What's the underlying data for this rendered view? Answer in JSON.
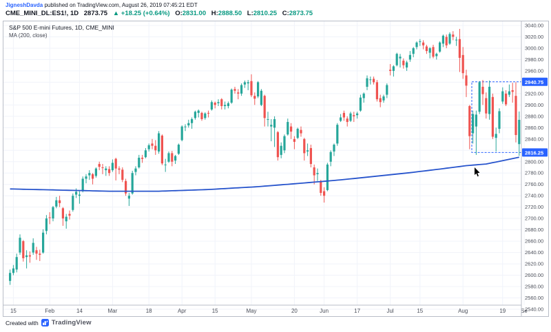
{
  "header": {
    "author": "JigneshDavda",
    "published": " published on TradingView.com, August 26, 2019 07:45:21 EDT",
    "symbol": "CME_MINI_DL:ES1!, 1D",
    "last_price": "2873.75",
    "change": "▲ +18.25 (+0.64%)",
    "ohlc": [
      {
        "label": "O:",
        "value": "2831.00"
      },
      {
        "label": "H:",
        "value": "2888.50"
      },
      {
        "label": "L:",
        "value": "2810.25"
      },
      {
        "label": "C:",
        "value": "2873.75"
      }
    ]
  },
  "legend": {
    "line1": "S&P 500 E-mini Futures, 1D, CME_MINI",
    "line2": "MA (200, close)"
  },
  "footer": {
    "created_with": "Created with",
    "brand": "TradingView"
  },
  "colors": {
    "up": "#26a69a",
    "down": "#ef5350",
    "ma": "#2653cc",
    "level": "#2962ff",
    "badge_bg": "#2962ff",
    "badge_text": "#ffffff",
    "grid": "#f0f3fa",
    "axis_text": "#4a4e59",
    "separator": "#b9bdc7"
  },
  "chart_data": {
    "type": "candlestick",
    "title": "S&P 500 E-mini Futures, 1D, CME_MINI",
    "overlay": "MA (200, close)",
    "y_axis": {
      "min": 2540,
      "max": 3040,
      "step": 20
    },
    "x_ticks": [
      {
        "i": 1,
        "label": "15"
      },
      {
        "i": 12,
        "label": "Feb"
      },
      {
        "i": 21,
        "label": "14"
      },
      {
        "i": 31,
        "label": "Mar"
      },
      {
        "i": 42,
        "label": "18"
      },
      {
        "i": 52,
        "label": "Apr"
      },
      {
        "i": 62,
        "label": "15"
      },
      {
        "i": 73,
        "label": "May"
      },
      {
        "i": 86,
        "label": "20"
      },
      {
        "i": 95,
        "label": "Jun"
      },
      {
        "i": 105,
        "label": "17"
      },
      {
        "i": 115,
        "label": "Jul"
      },
      {
        "i": 124,
        "label": "15"
      },
      {
        "i": 137,
        "label": "Aug"
      },
      {
        "i": 149,
        "label": "19"
      },
      {
        "i": 155.5,
        "label": "Se"
      }
    ],
    "levels": [
      {
        "price": 2940.75,
        "label": "2940.75"
      },
      {
        "price": 2816.25,
        "label": "2816.25"
      }
    ],
    "range_box": {
      "start_bar": 140,
      "top": 2940.75,
      "bottom": 2816.25
    },
    "ma200_anchors": [
      [
        0,
        2752
      ],
      [
        15,
        2750
      ],
      [
        30,
        2748
      ],
      [
        45,
        2748
      ],
      [
        60,
        2751
      ],
      [
        75,
        2756
      ],
      [
        90,
        2763
      ],
      [
        100,
        2768
      ],
      [
        110,
        2774
      ],
      [
        120,
        2780
      ],
      [
        130,
        2787
      ],
      [
        138,
        2793
      ],
      [
        144,
        2796
      ],
      [
        150,
        2803
      ],
      [
        154,
        2808
      ]
    ],
    "cursor": {
      "bar": 140.5,
      "price": 2790
    },
    "candles": [
      [
        2590,
        2610,
        2583,
        2604
      ],
      [
        2604,
        2618,
        2600,
        2612
      ],
      [
        2610,
        2638,
        2605,
        2632
      ],
      [
        2640,
        2672,
        2636,
        2666
      ],
      [
        2660,
        2662,
        2624,
        2630
      ],
      [
        2632,
        2644,
        2612,
        2635
      ],
      [
        2635,
        2642,
        2622,
        2633
      ],
      [
        2640,
        2665,
        2636,
        2657
      ],
      [
        2644,
        2650,
        2627,
        2638
      ],
      [
        2638,
        2645,
        2625,
        2636
      ],
      [
        2640,
        2681,
        2638,
        2675
      ],
      [
        2678,
        2706,
        2672,
        2700
      ],
      [
        2702,
        2711,
        2690,
        2701
      ],
      [
        2700,
        2722,
        2695,
        2720
      ],
      [
        2721,
        2738,
        2718,
        2732
      ],
      [
        2732,
        2740,
        2720,
        2727
      ],
      [
        2718,
        2720,
        2687,
        2700
      ],
      [
        2695,
        2708,
        2682,
        2703
      ],
      [
        2708,
        2714,
        2698,
        2705
      ],
      [
        2715,
        2744,
        2712,
        2740
      ],
      [
        2742,
        2753,
        2736,
        2747
      ],
      [
        2740,
        2748,
        2726,
        2742
      ],
      [
        2748,
        2774,
        2746,
        2770
      ],
      [
        2770,
        2778,
        2762,
        2774
      ],
      [
        2776,
        2785,
        2768,
        2780
      ],
      [
        2778,
        2780,
        2760,
        2770
      ],
      [
        2775,
        2790,
        2772,
        2788
      ],
      [
        2796,
        2800,
        2785,
        2791
      ],
      [
        2790,
        2796,
        2778,
        2789
      ],
      [
        2785,
        2792,
        2775,
        2788
      ],
      [
        2787,
        2792,
        2775,
        2780
      ],
      [
        2785,
        2804,
        2782,
        2798
      ],
      [
        2805,
        2807,
        2767,
        2788
      ],
      [
        2788,
        2792,
        2778,
        2786
      ],
      [
        2786,
        2790,
        2764,
        2768
      ],
      [
        2766,
        2770,
        2740,
        2744
      ],
      [
        2735,
        2745,
        2722,
        2740
      ],
      [
        2744,
        2784,
        2742,
        2780
      ],
      [
        2782,
        2792,
        2776,
        2788
      ],
      [
        2790,
        2812,
        2788,
        2807
      ],
      [
        2807,
        2812,
        2798,
        2805
      ],
      [
        2808,
        2824,
        2806,
        2820
      ],
      [
        2822,
        2832,
        2818,
        2829
      ],
      [
        2832,
        2840,
        2822,
        2828
      ],
      [
        2828,
        2838,
        2812,
        2820
      ],
      [
        2818,
        2854,
        2814,
        2850
      ],
      [
        2846,
        2848,
        2794,
        2797
      ],
      [
        2795,
        2805,
        2782,
        2795
      ],
      [
        2800,
        2818,
        2798,
        2815
      ],
      [
        2815,
        2819,
        2792,
        2800
      ],
      [
        2802,
        2812,
        2796,
        2810
      ],
      [
        2814,
        2832,
        2812,
        2830
      ],
      [
        2838,
        2864,
        2836,
        2862
      ],
      [
        2862,
        2866,
        2854,
        2862
      ],
      [
        2864,
        2874,
        2860,
        2868
      ],
      [
        2868,
        2878,
        2858,
        2875
      ],
      [
        2877,
        2890,
        2874,
        2888
      ],
      [
        2886,
        2892,
        2878,
        2890
      ],
      [
        2886,
        2888,
        2872,
        2875
      ],
      [
        2877,
        2887,
        2874,
        2885
      ],
      [
        2886,
        2890,
        2878,
        2885
      ],
      [
        2892,
        2908,
        2890,
        2905
      ],
      [
        2904,
        2906,
        2894,
        2900
      ],
      [
        2903,
        2910,
        2898,
        2905
      ],
      [
        2910,
        2912,
        2892,
        2898
      ],
      [
        2898,
        2906,
        2892,
        2900
      ],
      [
        2898,
        2906,
        2894,
        2903
      ],
      [
        2904,
        2929,
        2902,
        2927
      ],
      [
        2928,
        2932,
        2920,
        2925
      ],
      [
        2922,
        2928,
        2910,
        2920
      ],
      [
        2920,
        2938,
        2916,
        2935
      ],
      [
        2936,
        2943,
        2930,
        2940
      ],
      [
        2938,
        2944,
        2926,
        2940
      ],
      [
        2942,
        2954,
        2914,
        2917
      ],
      [
        2916,
        2922,
        2900,
        2911
      ],
      [
        2915,
        2942,
        2912,
        2940
      ],
      [
        2900,
        2928,
        2898,
        2925
      ],
      [
        2916,
        2918,
        2862,
        2877
      ],
      [
        2875,
        2888,
        2862,
        2875
      ],
      [
        2862,
        2875,
        2836,
        2865
      ],
      [
        2860,
        2880,
        2826,
        2875
      ],
      [
        2852,
        2854,
        2802,
        2808
      ],
      [
        2812,
        2834,
        2806,
        2828
      ],
      [
        2820,
        2848,
        2815,
        2845
      ],
      [
        2848,
        2876,
        2846,
        2870
      ],
      [
        2862,
        2868,
        2840,
        2853
      ],
      [
        2840,
        2845,
        2822,
        2835
      ],
      [
        2842,
        2860,
        2840,
        2858
      ],
      [
        2856,
        2862,
        2844,
        2850
      ],
      [
        2840,
        2842,
        2802,
        2815
      ],
      [
        2818,
        2832,
        2810,
        2820
      ],
      [
        2824,
        2830,
        2790,
        2796
      ],
      [
        2790,
        2795,
        2760,
        2776
      ],
      [
        2778,
        2788,
        2766,
        2780
      ],
      [
        2766,
        2768,
        2740,
        2745
      ],
      [
        2748,
        2755,
        2728,
        2740
      ],
      [
        2750,
        2798,
        2748,
        2795
      ],
      [
        2800,
        2820,
        2792,
        2817
      ],
      [
        2818,
        2832,
        2810,
        2830
      ],
      [
        2832,
        2868,
        2828,
        2865
      ],
      [
        2872,
        2884,
        2870,
        2878
      ],
      [
        2886,
        2890,
        2872,
        2878
      ],
      [
        2876,
        2880,
        2862,
        2870
      ],
      [
        2872,
        2888,
        2870,
        2885
      ],
      [
        2882,
        2888,
        2870,
        2880
      ],
      [
        2882,
        2888,
        2876,
        2885
      ],
      [
        2890,
        2918,
        2888,
        2913
      ],
      [
        2912,
        2922,
        2904,
        2920
      ],
      [
        2932,
        2952,
        2926,
        2947
      ],
      [
        2944,
        2950,
        2936,
        2945
      ],
      [
        2946,
        2950,
        2936,
        2940
      ],
      [
        2940,
        2944,
        2906,
        2910
      ],
      [
        2912,
        2918,
        2896,
        2905
      ],
      [
        2908,
        2918,
        2904,
        2915
      ],
      [
        2918,
        2938,
        2912,
        2935
      ],
      [
        2962,
        2972,
        2952,
        2960
      ],
      [
        2960,
        2970,
        2950,
        2968
      ],
      [
        2970,
        2992,
        2968,
        2990
      ],
      [
        2982,
        2990,
        2966,
        2985
      ],
      [
        2978,
        2982,
        2964,
        2970
      ],
      [
        2966,
        2978,
        2960,
        2975
      ],
      [
        2980,
        2995,
        2976,
        2988
      ],
      [
        2990,
        3002,
        2984,
        3000
      ],
      [
        3002,
        3012,
        2998,
        3010
      ],
      [
        3012,
        3016,
        3004,
        3012
      ],
      [
        3010,
        3014,
        2998,
        3005
      ],
      [
        3003,
        3006,
        2990,
        2995
      ],
      [
        2992,
        3002,
        2982,
        3000
      ],
      [
        3002,
        3006,
        2982,
        2985
      ],
      [
        2986,
        2992,
        2980,
        2990
      ],
      [
        2994,
        3012,
        2992,
        3010
      ],
      [
        3008,
        3024,
        3002,
        3022
      ],
      [
        3020,
        3024,
        3000,
        3005
      ],
      [
        3008,
        3028,
        3006,
        3025
      ],
      [
        3024,
        3030,
        3014,
        3020
      ],
      [
        3014,
        3020,
        3004,
        3015
      ],
      [
        3016,
        3034,
        2958,
        2983
      ],
      [
        2988,
        3002,
        2946,
        2956
      ],
      [
        2952,
        2962,
        2914,
        2934
      ],
      [
        2898,
        2900,
        2822,
        2845
      ],
      [
        2850,
        2890,
        2832,
        2884
      ],
      [
        2862,
        2890,
        2812,
        2883
      ],
      [
        2888,
        2942,
        2884,
        2940
      ],
      [
        2932,
        2944,
        2900,
        2919
      ],
      [
        2912,
        2922,
        2876,
        2885
      ],
      [
        2884,
        2943,
        2874,
        2932
      ],
      [
        2914,
        2920,
        2840,
        2844
      ],
      [
        2842,
        2860,
        2818,
        2849
      ],
      [
        2858,
        2894,
        2850,
        2889
      ],
      [
        2906,
        2931,
        2902,
        2924
      ],
      [
        2920,
        2926,
        2898,
        2901
      ],
      [
        2918,
        2936,
        2914,
        2924
      ],
      [
        2926,
        2939,
        2904,
        2923
      ],
      [
        2916,
        2940,
        2834,
        2847
      ],
      [
        2831,
        2888.5,
        2810.25,
        2873.75
      ]
    ]
  }
}
